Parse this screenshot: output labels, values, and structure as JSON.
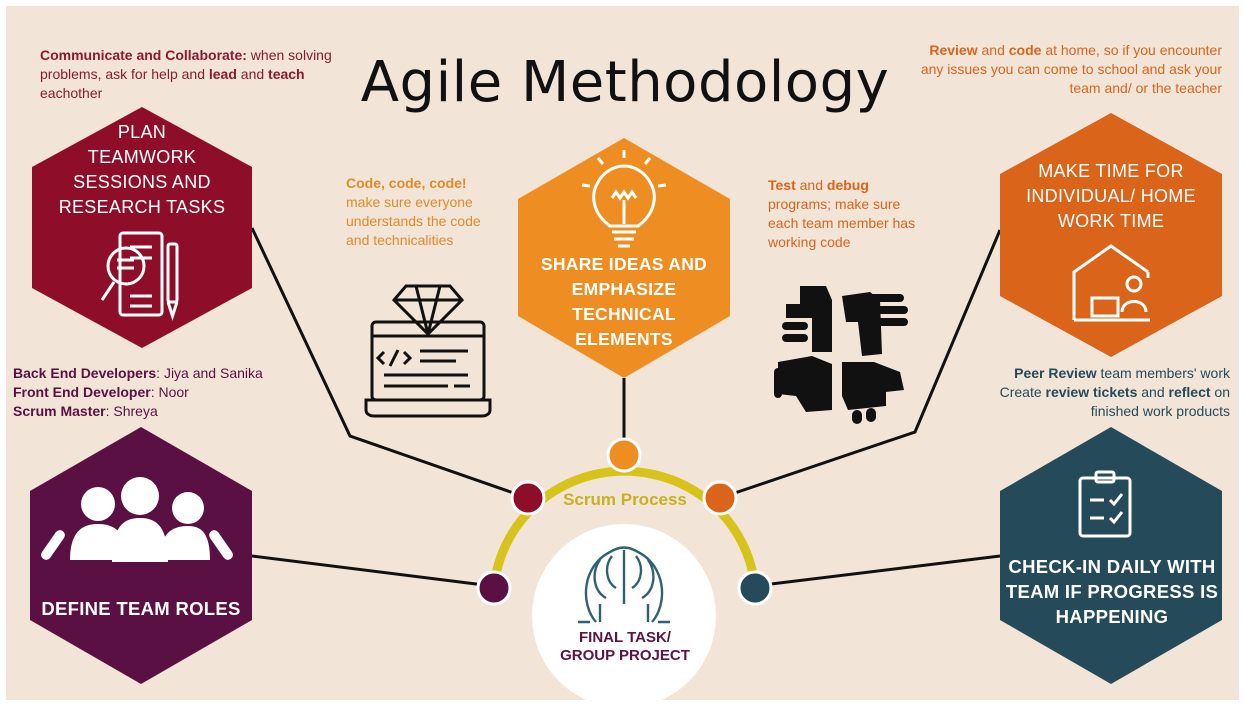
{
  "title": "Agile Methodology",
  "colors": {
    "background": "#f2e5d8",
    "maroon": "#8e0e2a",
    "orange_light": "#ee8e22",
    "orange_dark": "#d9641a",
    "purple": "#5a1042",
    "teal": "#254a5a",
    "scrum_arc": "#d6c31c"
  },
  "hexes": {
    "plan": {
      "line1": "PLAN",
      "line2": "TEAMWORK",
      "line3": "SESSIONS AND",
      "line4": "RESEARCH TASKS",
      "icon": "document-search-icon"
    },
    "share": {
      "line1": "SHARE IDEAS AND",
      "line2": "EMPHASIZE",
      "line3": "TECHNICAL",
      "line4": "ELEMENTS",
      "icon": "lightbulb-icon"
    },
    "time": {
      "line1": "MAKE TIME FOR",
      "line2": "INDIVIDUAL/ HOME",
      "line3": "WORK TIME",
      "icon": "home-work-icon"
    },
    "roles": {
      "line1": "DEFINE TEAM ROLES",
      "icon": "team-icon"
    },
    "checkin": {
      "line1": "CHECK-IN DAILY WITH",
      "line2": "TEAM IF PROGRESS IS",
      "line3": "HAPPENING",
      "icon": "clipboard-check-icon"
    }
  },
  "notes": {
    "communicate": {
      "b1": "Communicate and Collaborate:",
      "t1": " when solving problems, ask for help and ",
      "b2": "lead",
      "t2": " and ",
      "b3": "teach",
      "t3": " eachother"
    },
    "code": {
      "b1": "Code, code, code!",
      "t1": "make sure everyone understands the code and technicalities"
    },
    "test": {
      "b1": "Test",
      "t1": " and ",
      "b2": "debug",
      "t2": " programs; make sure each team member has working code"
    },
    "review": {
      "b1": "Review",
      "t1": " and ",
      "b2": "code",
      "t2": " at home, so if you encounter any issues you can come to school and ask your team and/ or the teacher"
    },
    "roles": {
      "r1_label": "Back End Developers",
      "r1_value": ": Jiya and Sanika",
      "r2_label": "Front End Developer",
      "r2_value": ": Noor",
      "r3_label": "Scrum Master",
      "r3_value": ": Shreya"
    },
    "peer": {
      "b1": "Peer Review",
      "t1": " team members' work",
      "t2": "Create ",
      "b2": "review tickets",
      "t3": " and  ",
      "b3": "reflect",
      "t4": " on",
      "t5": "finished work products"
    }
  },
  "center": {
    "scrum_label": "Scrum Process",
    "final_line1": "FINAL TASK/",
    "final_line2": "GROUP PROJECT",
    "icon": "brain-heads-icon"
  },
  "decor_icons": [
    "diamond-laptop-icon",
    "hands-teamwork-icon"
  ]
}
